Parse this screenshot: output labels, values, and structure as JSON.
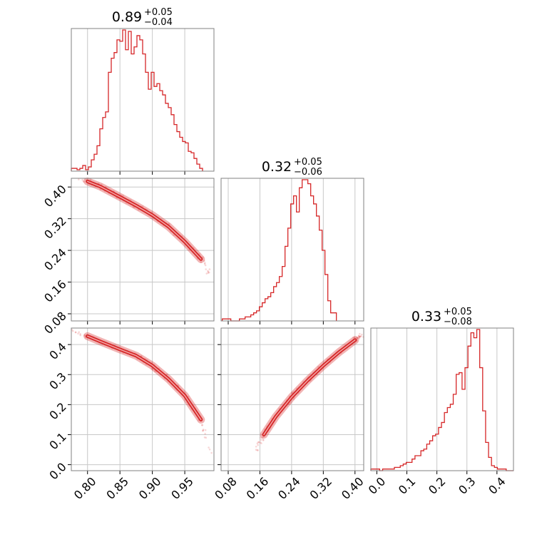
{
  "chart_data": {
    "type": "corner",
    "color": "#d62728",
    "grid": true,
    "parameters": [
      {
        "range": [
          0.775,
          0.995
        ],
        "ticks": [
          "0.80",
          "0.85",
          "0.90",
          "0.95"
        ],
        "title": {
          "median": "0.89",
          "plus": "+0.05",
          "minus": "−0.04"
        }
      },
      {
        "range": [
          0.062,
          0.422
        ],
        "ticks": [
          "0.08",
          "0.16",
          "0.24",
          "0.32",
          "0.40"
        ],
        "title": {
          "median": "0.32",
          "plus": "+0.05",
          "minus": "−0.06"
        }
      },
      {
        "range": [
          -0.02,
          0.455
        ],
        "ticks": [
          "0.0",
          "0.1",
          "0.2",
          "0.3",
          "0.4"
        ],
        "title": {
          "median": "0.33",
          "plus": "+0.05",
          "minus": "−0.08"
        }
      }
    ],
    "histograms": [
      {
        "param": 0,
        "start": 0.775,
        "bin_width": 0.0044,
        "counts": [
          2,
          2,
          1,
          2,
          4,
          1,
          3,
          8,
          12,
          18,
          30,
          38,
          42,
          70,
          80,
          84,
          93,
          92,
          100,
          86,
          99,
          83,
          88,
          96,
          93,
          83,
          70,
          58,
          70,
          60,
          62,
          57,
          54,
          48,
          45,
          40,
          33,
          28,
          24,
          21,
          20,
          14,
          13,
          9,
          5,
          2
        ]
      },
      {
        "param": 1,
        "start": 0.065,
        "bin_width": 0.0072,
        "counts": [
          1,
          1,
          1,
          0,
          0,
          0,
          1,
          1,
          2,
          2,
          3,
          4,
          5,
          7,
          9,
          11,
          12,
          14,
          17,
          19,
          22,
          27,
          37,
          46,
          58,
          62,
          54,
          66,
          70,
          70,
          68,
          62,
          58,
          52,
          45,
          35,
          23,
          10,
          4,
          4
        ]
      },
      {
        "param": 2,
        "start": -0.02,
        "bin_width": 0.0098,
        "counts": [
          1,
          1,
          1,
          0,
          1,
          1,
          1,
          1,
          2,
          2,
          3,
          4,
          5,
          5,
          7,
          9,
          9,
          12,
          13,
          16,
          18,
          21,
          22,
          26,
          29,
          35,
          38,
          40,
          46,
          58,
          59,
          49,
          62,
          75,
          83,
          80,
          85,
          62,
          36,
          17,
          8,
          3,
          2,
          1,
          1,
          1,
          0,
          0,
          0
        ]
      }
    ],
    "scatter_pairs": [
      {
        "x_param": 0,
        "y_param": 1,
        "curve": [
          [
            0.775,
            0.428
          ],
          [
            0.8,
            0.414
          ],
          [
            0.82,
            0.401
          ],
          [
            0.85,
            0.375
          ],
          [
            0.875,
            0.353
          ],
          [
            0.9,
            0.329
          ],
          [
            0.925,
            0.3
          ],
          [
            0.95,
            0.262
          ],
          [
            0.975,
            0.218
          ],
          [
            0.99,
            0.175
          ]
        ]
      },
      {
        "x_param": 0,
        "y_param": 2,
        "curve": [
          [
            0.775,
            0.445
          ],
          [
            0.8,
            0.428
          ],
          [
            0.82,
            0.41
          ],
          [
            0.85,
            0.384
          ],
          [
            0.875,
            0.363
          ],
          [
            0.9,
            0.33
          ],
          [
            0.925,
            0.285
          ],
          [
            0.95,
            0.23
          ],
          [
            0.975,
            0.15
          ],
          [
            0.99,
            0.04
          ]
        ]
      },
      {
        "x_param": 1,
        "y_param": 2,
        "curve": [
          [
            0.14,
            0.03
          ],
          [
            0.17,
            0.1
          ],
          [
            0.2,
            0.16
          ],
          [
            0.24,
            0.225
          ],
          [
            0.28,
            0.28
          ],
          [
            0.32,
            0.33
          ],
          [
            0.36,
            0.375
          ],
          [
            0.4,
            0.415
          ],
          [
            0.42,
            0.435
          ]
        ]
      }
    ]
  }
}
